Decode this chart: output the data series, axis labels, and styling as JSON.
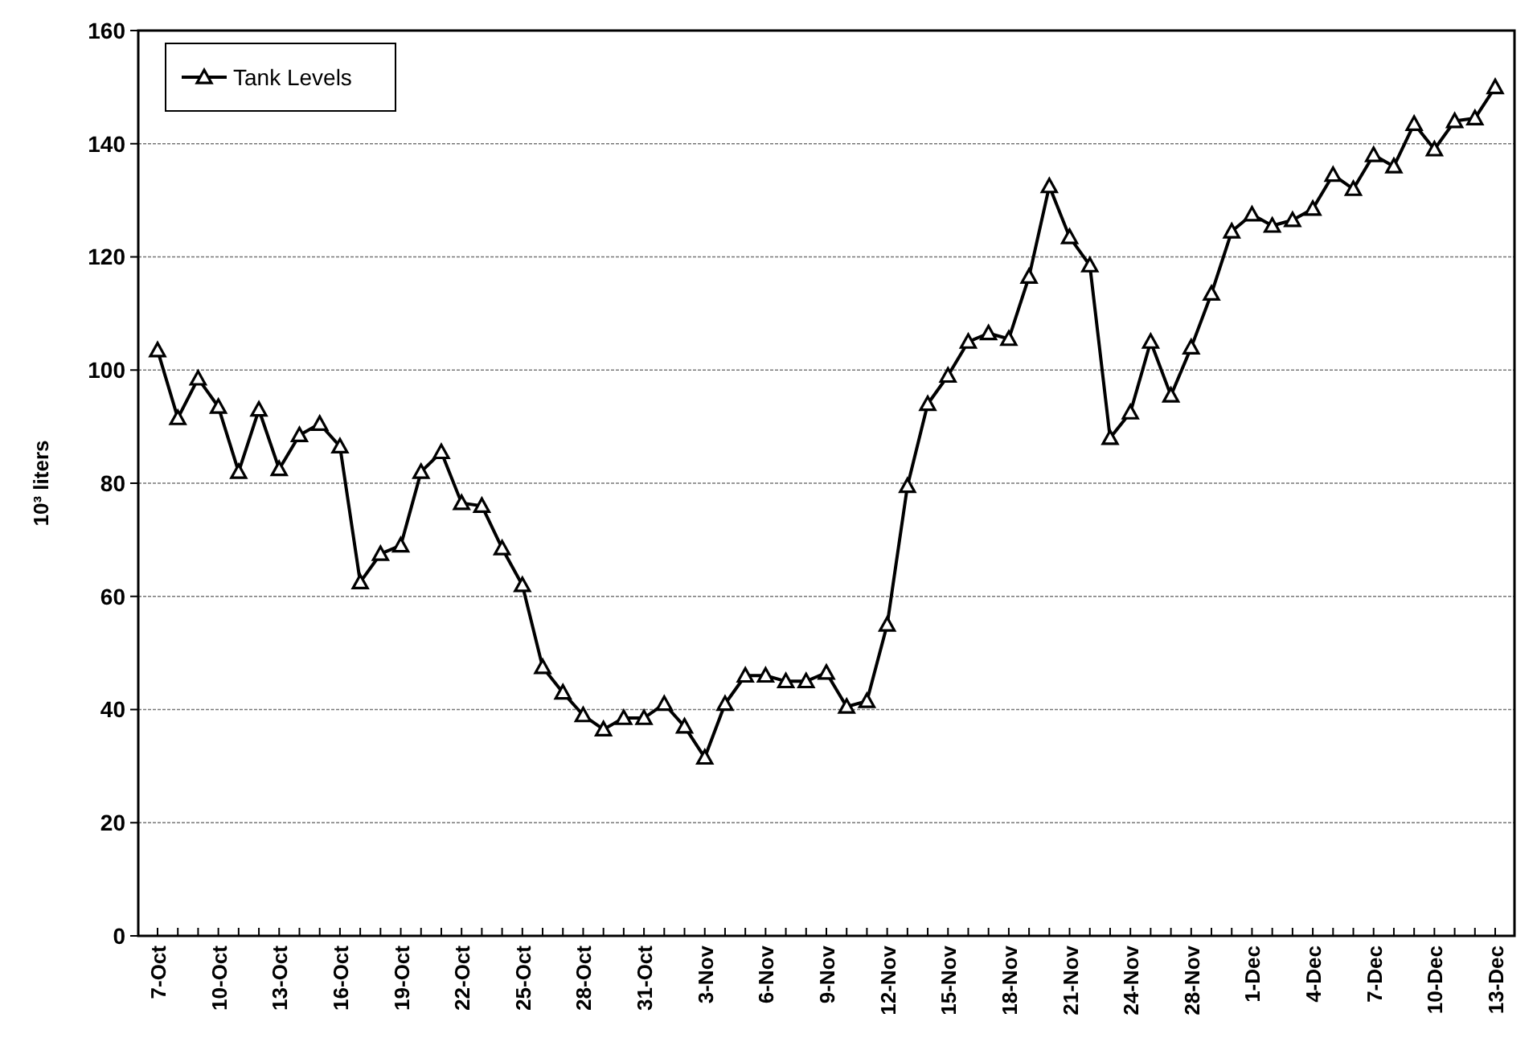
{
  "chart_data": {
    "type": "line",
    "ylabel": "10³ liters",
    "categories": [
      "7-Oct",
      null,
      null,
      "10-Oct",
      null,
      null,
      "13-Oct",
      null,
      null,
      "16-Oct",
      null,
      null,
      "19-Oct",
      null,
      null,
      "22-Oct",
      null,
      null,
      "25-Oct",
      null,
      null,
      "28-Oct",
      null,
      null,
      "31-Oct",
      null,
      null,
      "3-Nov",
      null,
      null,
      "6-Nov",
      null,
      null,
      "9-Nov",
      null,
      null,
      "12-Nov",
      null,
      null,
      "15-Nov",
      null,
      null,
      "18-Nov",
      null,
      null,
      "21-Nov",
      null,
      null,
      "24-Nov",
      null,
      null,
      "28-Nov",
      null,
      null,
      "1-Dec",
      null,
      null,
      "4-Dec",
      null,
      null,
      "7-Dec",
      null,
      null,
      "10-Dec",
      null,
      null,
      "13-Dec"
    ],
    "series": [
      {
        "name": "Tank Levels",
        "color": "#000000",
        "values": [
          103.5,
          91.5,
          98.5,
          93.5,
          82,
          93,
          82.5,
          88.5,
          90.5,
          86.5,
          62.5,
          67.5,
          69,
          82,
          85.5,
          76.5,
          76,
          68.5,
          62,
          47.5,
          43,
          39,
          36.5,
          38.5,
          38.5,
          41,
          37,
          31.5,
          41,
          46,
          46,
          45,
          45,
          46.5,
          40.5,
          41.5,
          55,
          79.5,
          94,
          99,
          105,
          106.5,
          105.5,
          116.5,
          132.5,
          123.5,
          118.5,
          88,
          92.5,
          105,
          95.5,
          104,
          113.5,
          124.5,
          127.5,
          125.5,
          126.5,
          128.5,
          134.5,
          132,
          138,
          136,
          143.5,
          139,
          144,
          144.5,
          150
        ]
      }
    ],
    "ylim": [
      0,
      160
    ],
    "yticks": [
      0,
      20,
      40,
      60,
      80,
      100,
      120,
      140,
      160
    ],
    "grid": "y",
    "legend": "top left",
    "marker": "triangle",
    "line_style": "solid"
  }
}
